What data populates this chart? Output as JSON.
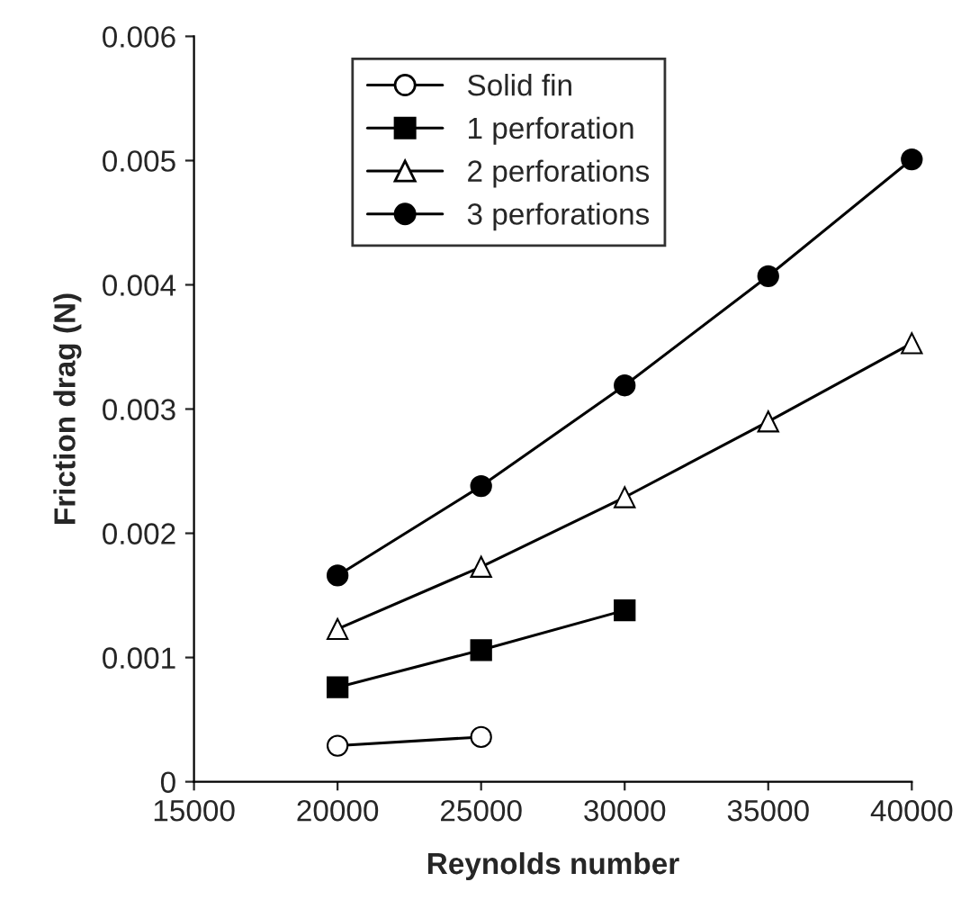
{
  "chart_data": {
    "type": "line",
    "xlabel": "Reynolds number",
    "ylabel": "Friction drag (N)",
    "xlim": [
      15000,
      40000
    ],
    "xticks": [
      15000,
      20000,
      25000,
      30000,
      35000,
      40000
    ],
    "ylim": [
      0,
      0.006
    ],
    "yticks": [
      0,
      0.001,
      0.002,
      0.003,
      0.004,
      0.005,
      0.006
    ],
    "grid": false,
    "legend": "top left",
    "series": [
      {
        "name": "Solid fin",
        "color": "#000000",
        "marker": "circle",
        "x": [
          20000,
          25000
        ],
        "values": [
          0.00029,
          0.00036
        ]
      },
      {
        "name": "1 perforation",
        "color": "#000000",
        "marker": "square",
        "x": [
          20000,
          25000,
          30000
        ],
        "values": [
          0.00076,
          0.00106,
          0.00138
        ]
      },
      {
        "name": "2 perforations",
        "color": "#000000",
        "marker": "triangle",
        "x": [
          20000,
          25000,
          30000,
          35000,
          40000
        ],
        "values": [
          0.00123,
          0.00173,
          0.00229,
          0.0029,
          0.00353
        ]
      },
      {
        "name": "3 perforations",
        "color": "#000000",
        "marker": "circle",
        "x": [
          20000,
          25000,
          30000,
          35000,
          40000
        ],
        "values": [
          0.00166,
          0.00238,
          0.00319,
          0.00407,
          0.00501
        ]
      }
    ]
  }
}
